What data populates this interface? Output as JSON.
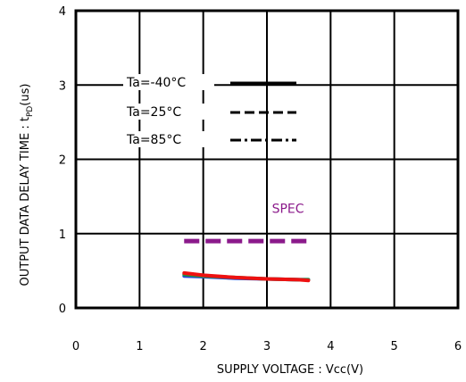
{
  "chart_data": {
    "type": "line",
    "title": "",
    "xlabel": "SUPPLY VOLTAGE : Vcc(V)",
    "ylabel_prefix": "OUTPUT DATA DELAY TIME : t",
    "ylabel_sub": "PD",
    "ylabel_suffix": "(us)",
    "xlim": [
      0,
      6
    ],
    "ylim": [
      0,
      4
    ],
    "x_ticks": [
      0,
      1,
      2,
      3,
      4,
      5,
      6
    ],
    "y_ticks": [
      0,
      1,
      2,
      3,
      4
    ],
    "x_tick_labels": [
      "0",
      "1",
      "2",
      "3",
      "4",
      "5",
      "6"
    ],
    "y_tick_labels": [
      "0",
      "1",
      "2",
      "3",
      "4"
    ],
    "grid": true,
    "legend_position": "upper-left",
    "series": [
      {
        "name": "Ta=-40°C",
        "legend_style": "solid",
        "line_color": "#2244dd",
        "x": [
          1.7,
          2.0,
          2.5,
          3.0,
          3.5,
          3.65
        ],
        "y": [
          0.43,
          0.42,
          0.4,
          0.39,
          0.38,
          0.38
        ]
      },
      {
        "name": "Ta=25°C",
        "legend_style": "dashed",
        "line_color": "#1e9a3c",
        "x": [
          1.7,
          2.0,
          2.5,
          3.0,
          3.5,
          3.65
        ],
        "y": [
          0.45,
          0.43,
          0.41,
          0.39,
          0.38,
          0.38
        ]
      },
      {
        "name": "Ta=85°C",
        "legend_style": "dashdot",
        "line_color": "#ee1111",
        "x": [
          1.7,
          2.0,
          2.5,
          3.0,
          3.5,
          3.65
        ],
        "y": [
          0.47,
          0.44,
          0.41,
          0.39,
          0.38,
          0.37
        ]
      }
    ],
    "spec": {
      "label": "SPEC",
      "color": "#8b1a8b",
      "x": [
        1.7,
        3.65
      ],
      "y": 0.9
    }
  }
}
